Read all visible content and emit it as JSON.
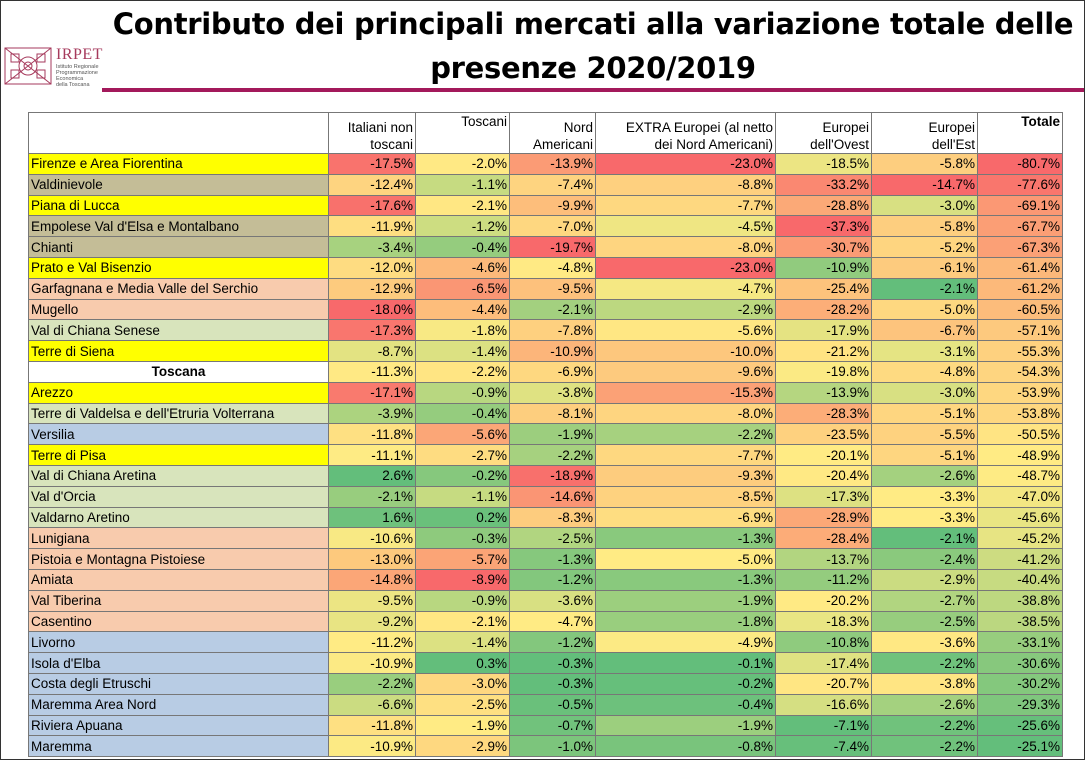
{
  "title": {
    "line1": "Contributo dei principali mercati alla variazione totale delle",
    "line2": "presenze 2020/2019"
  },
  "logo": {
    "name": "IRPET",
    "subtitle": [
      "Istituto Regionale",
      "Programmazione",
      "Economica",
      "della Toscana"
    ],
    "icon": "irpet-logo-icon",
    "color": "#a63a5c"
  },
  "columns": [
    {
      "lines": [
        "Italiani non",
        "toscani"
      ]
    },
    {
      "lines": [
        "Toscani"
      ]
    },
    {
      "lines": [
        "Nord",
        "Americani"
      ]
    },
    {
      "lines": [
        "EXTRA Europei (al netto",
        "dei Nord Americani)"
      ]
    },
    {
      "lines": [
        "Europei",
        "dell'Ovest"
      ]
    },
    {
      "lines": [
        "Europei",
        "dell'Est"
      ]
    },
    {
      "lines": [
        "Totale"
      ],
      "bold": true
    }
  ],
  "area_colors": {
    "yellow": "#ffff00",
    "taupe": "#c4bd97",
    "peach": "#f8cbad",
    "lightgreen": "#d8e4bc",
    "blue": "#b8cce4",
    "white": "#ffffff"
  },
  "rows": [
    {
      "name": "Firenze e Area Fiorentina",
      "color": "yellow",
      "values": [
        "-17.5%",
        "-2.0%",
        "-13.9%",
        "-23.0%",
        "-18.5%",
        "-5.8%",
        "-80.7%"
      ]
    },
    {
      "name": "Valdinievole",
      "color": "taupe",
      "values": [
        "-12.4%",
        "-1.1%",
        "-7.4%",
        "-8.8%",
        "-33.2%",
        "-14.7%",
        "-77.6%"
      ]
    },
    {
      "name": "Piana di Lucca",
      "color": "yellow",
      "values": [
        "-17.6%",
        "-2.1%",
        "-9.9%",
        "-7.7%",
        "-28.8%",
        "-3.0%",
        "-69.1%"
      ]
    },
    {
      "name": "Empolese Val d'Elsa e Montalbano",
      "color": "taupe",
      "values": [
        "-11.9%",
        "-1.2%",
        "-7.0%",
        "-4.5%",
        "-37.3%",
        "-5.8%",
        "-67.7%"
      ]
    },
    {
      "name": "Chianti",
      "color": "taupe",
      "values": [
        "-3.4%",
        "-0.4%",
        "-19.7%",
        "-8.0%",
        "-30.7%",
        "-5.2%",
        "-67.3%"
      ]
    },
    {
      "name": "Prato e Val Bisenzio",
      "color": "yellow",
      "values": [
        "-12.0%",
        "-4.6%",
        "-4.8%",
        "-23.0%",
        "-10.9%",
        "-6.1%",
        "-61.4%"
      ]
    },
    {
      "name": "Garfagnana e Media Valle del Serchio",
      "color": "peach",
      "values": [
        "-12.9%",
        "-6.5%",
        "-9.5%",
        "-4.7%",
        "-25.4%",
        "-2.1%",
        "-61.2%"
      ]
    },
    {
      "name": "Mugello",
      "color": "peach",
      "values": [
        "-18.0%",
        "-4.4%",
        "-2.1%",
        "-2.9%",
        "-28.2%",
        "-5.0%",
        "-60.5%"
      ]
    },
    {
      "name": "Val di Chiana Senese",
      "color": "lightgreen",
      "values": [
        "-17.3%",
        "-1.8%",
        "-7.8%",
        "-5.6%",
        "-17.9%",
        "-6.7%",
        "-57.1%"
      ]
    },
    {
      "name": "Terre di Siena",
      "color": "yellow",
      "values": [
        "-8.7%",
        "-1.4%",
        "-10.9%",
        "-10.0%",
        "-21.2%",
        "-3.1%",
        "-55.3%"
      ]
    },
    {
      "name": "Toscana",
      "color": "white",
      "bold": true,
      "values": [
        "-11.3%",
        "-2.2%",
        "-6.9%",
        "-9.6%",
        "-19.8%",
        "-4.8%",
        "-54.3%"
      ]
    },
    {
      "name": "Arezzo",
      "color": "yellow",
      "values": [
        "-17.1%",
        "-0.9%",
        "-3.8%",
        "-15.3%",
        "-13.9%",
        "-3.0%",
        "-53.9%"
      ]
    },
    {
      "name": "Terre di Valdelsa e dell'Etruria Volterrana",
      "color": "lightgreen",
      "values": [
        "-3.9%",
        "-0.4%",
        "-8.1%",
        "-8.0%",
        "-28.3%",
        "-5.1%",
        "-53.8%"
      ]
    },
    {
      "name": "Versilia",
      "color": "blue",
      "values": [
        "-11.8%",
        "-5.6%",
        "-1.9%",
        "-2.2%",
        "-23.5%",
        "-5.5%",
        "-50.5%"
      ]
    },
    {
      "name": "Terre di Pisa",
      "color": "yellow",
      "values": [
        "-11.1%",
        "-2.7%",
        "-2.2%",
        "-7.7%",
        "-20.1%",
        "-5.1%",
        "-48.9%"
      ]
    },
    {
      "name": "Val di Chiana Aretina",
      "color": "lightgreen",
      "values": [
        "2.6%",
        "-0.2%",
        "-18.9%",
        "-9.3%",
        "-20.4%",
        "-2.6%",
        "-48.7%"
      ]
    },
    {
      "name": "Val d'Orcia",
      "color": "lightgreen",
      "values": [
        "-2.1%",
        "-1.1%",
        "-14.6%",
        "-8.5%",
        "-17.3%",
        "-3.3%",
        "-47.0%"
      ]
    },
    {
      "name": "Valdarno Aretino",
      "color": "lightgreen",
      "values": [
        "1.6%",
        "0.2%",
        "-8.3%",
        "-6.9%",
        "-28.9%",
        "-3.3%",
        "-45.6%"
      ]
    },
    {
      "name": "Lunigiana",
      "color": "peach",
      "values": [
        "-10.6%",
        "-0.3%",
        "-2.5%",
        "-1.3%",
        "-28.4%",
        "-2.1%",
        "-45.2%"
      ]
    },
    {
      "name": "Pistoia e Montagna Pistoiese",
      "color": "peach",
      "values": [
        "-13.0%",
        "-5.7%",
        "-1.3%",
        "-5.0%",
        "-13.7%",
        "-2.4%",
        "-41.2%"
      ]
    },
    {
      "name": "Amiata",
      "color": "peach",
      "values": [
        "-14.8%",
        "-8.9%",
        "-1.2%",
        "-1.3%",
        "-11.2%",
        "-2.9%",
        "-40.4%"
      ]
    },
    {
      "name": "Val Tiberina",
      "color": "peach",
      "values": [
        "-9.5%",
        "-0.9%",
        "-3.6%",
        "-1.9%",
        "-20.2%",
        "-2.7%",
        "-38.8%"
      ]
    },
    {
      "name": "Casentino",
      "color": "peach",
      "values": [
        "-9.2%",
        "-2.1%",
        "-4.7%",
        "-1.8%",
        "-18.3%",
        "-2.5%",
        "-38.5%"
      ]
    },
    {
      "name": "Livorno",
      "color": "blue",
      "values": [
        "-11.2%",
        "-1.4%",
        "-1.2%",
        "-4.9%",
        "-10.8%",
        "-3.6%",
        "-33.1%"
      ]
    },
    {
      "name": "Isola d'Elba",
      "color": "blue",
      "values": [
        "-10.9%",
        "0.3%",
        "-0.3%",
        "-0.1%",
        "-17.4%",
        "-2.2%",
        "-30.6%"
      ]
    },
    {
      "name": "Costa degli Etruschi",
      "color": "blue",
      "values": [
        "-2.2%",
        "-3.0%",
        "-0.3%",
        "-0.2%",
        "-20.7%",
        "-3.8%",
        "-30.2%"
      ]
    },
    {
      "name": "Maremma Area Nord",
      "color": "blue",
      "values": [
        "-6.6%",
        "-2.5%",
        "-0.5%",
        "-0.4%",
        "-16.6%",
        "-2.6%",
        "-29.3%"
      ]
    },
    {
      "name": "Riviera Apuana",
      "color": "blue",
      "values": [
        "-11.8%",
        "-1.9%",
        "-0.7%",
        "-1.9%",
        "-7.1%",
        "-2.2%",
        "-25.6%"
      ]
    },
    {
      "name": "Maremma",
      "color": "blue",
      "values": [
        "-10.9%",
        "-2.9%",
        "-1.0%",
        "-0.8%",
        "-7.4%",
        "-2.2%",
        "-25.1%"
      ]
    }
  ]
}
